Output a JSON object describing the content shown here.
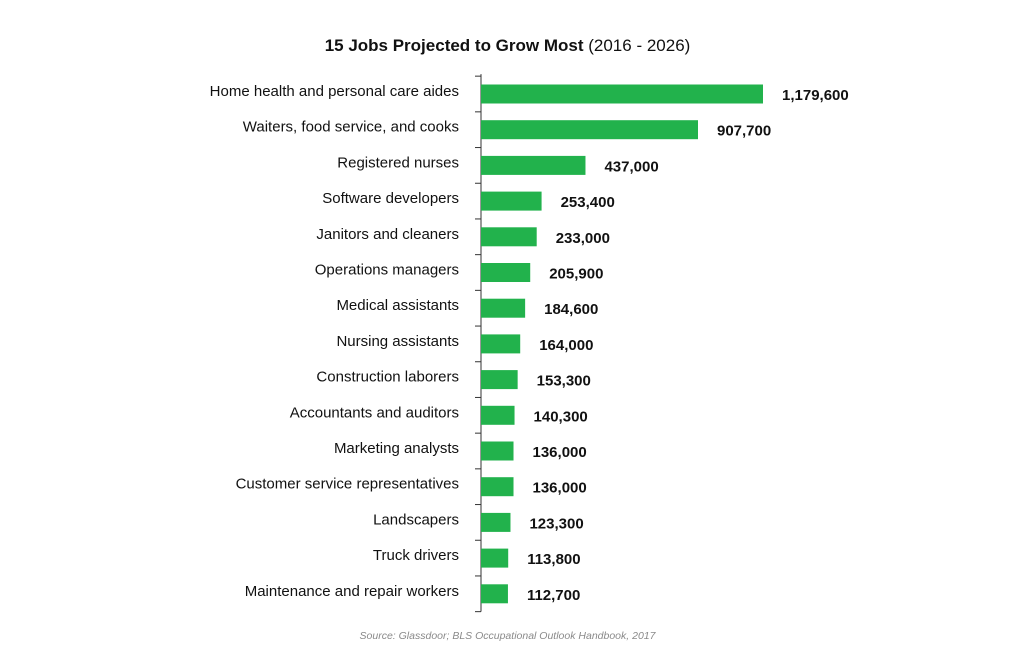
{
  "header": {
    "title_bold": "15 Jobs Projected to Grow Most",
    "title_suffix": " (2016 - 2026)"
  },
  "chart_data": {
    "type": "bar",
    "orientation": "horizontal",
    "title": "15 Jobs Projected to Grow Most (2016 - 2026)",
    "categories": [
      "Home health and personal care aides",
      "Waiters, food service, and cooks",
      "Registered nurses",
      "Software developers",
      "Janitors and cleaners",
      "Operations managers",
      "Medical assistants",
      "Nursing assistants",
      "Construction laborers",
      "Accountants and auditors",
      "Marketing analysts",
      "Customer service representatives",
      "Landscapers",
      "Truck drivers",
      "Maintenance and repair workers"
    ],
    "values": [
      1179600,
      907700,
      437000,
      253400,
      233000,
      205900,
      184600,
      164000,
      153300,
      140300,
      136000,
      136000,
      123300,
      113800,
      112700
    ],
    "value_labels": [
      "1,179,600",
      "907,700",
      "437,000",
      "253,400",
      "233,000",
      "205,900",
      "184,600",
      "164,000",
      "153,300",
      "140,300",
      "136,000",
      "136,000",
      "123,300",
      "113,800",
      "112,700"
    ],
    "xlim": [
      0,
      1179600
    ],
    "bar_color": "#22b24c",
    "grid": false,
    "legend": "none"
  },
  "footer": {
    "source": "Source: Glassdoor; BLS Occupational Outlook Handbook, 2017"
  }
}
